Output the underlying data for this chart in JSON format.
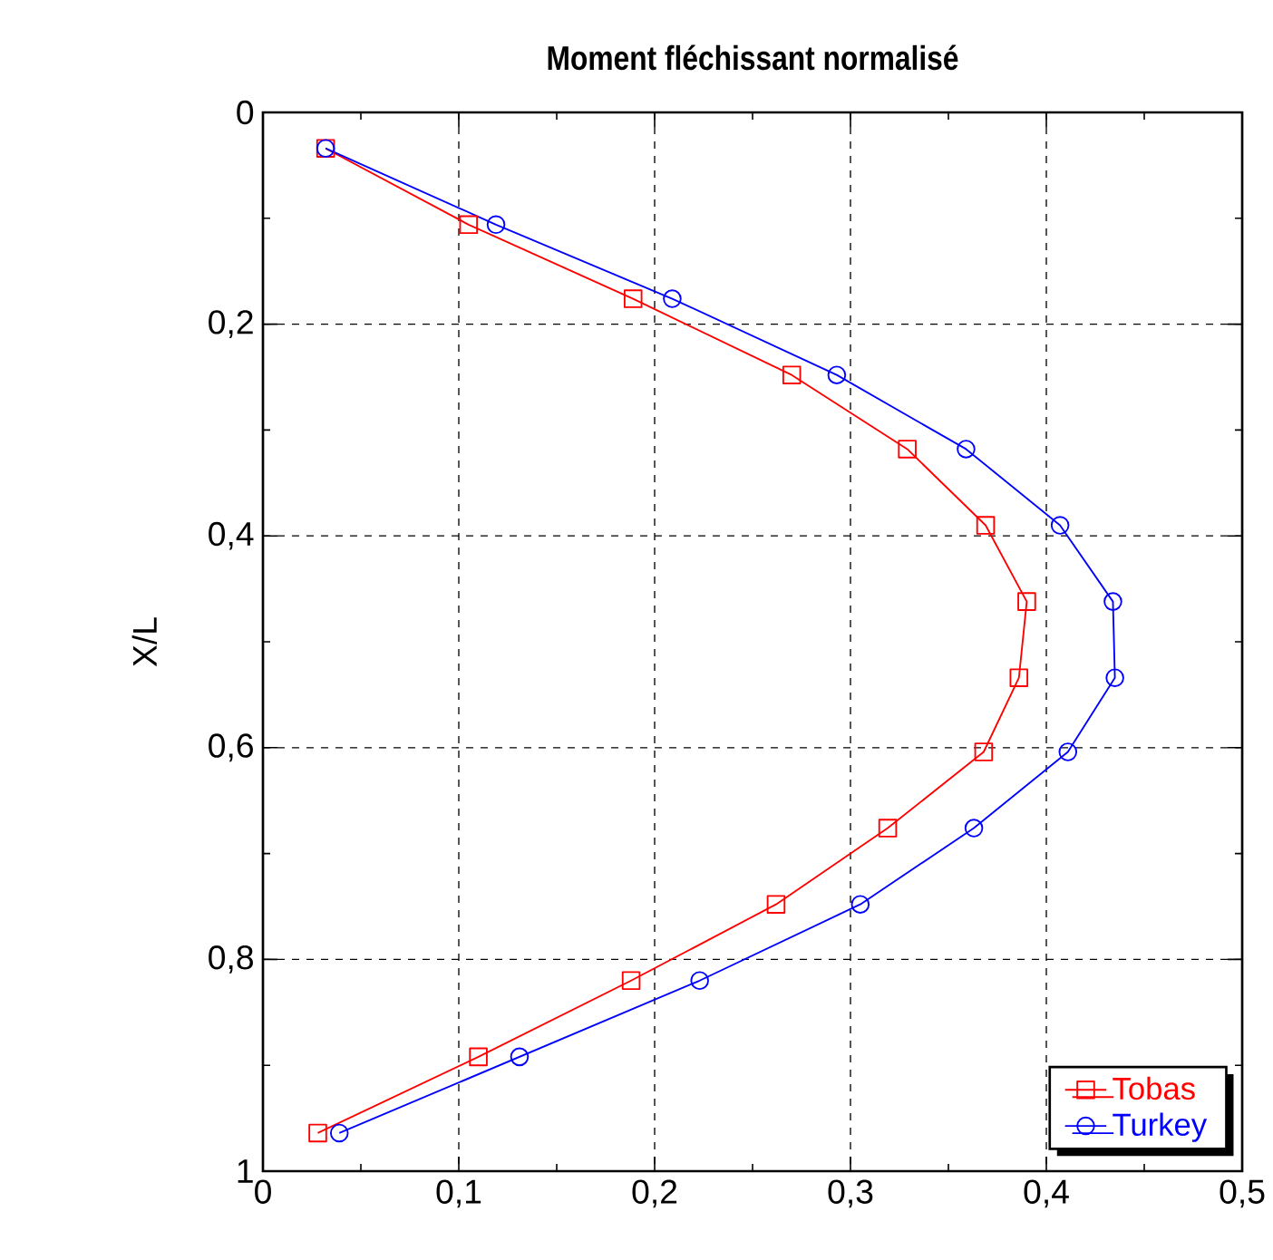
{
  "chart_data": {
    "type": "line",
    "title": "Moment fléchissant normalisé",
    "ylabel": "X/L",
    "xlim": [
      0,
      0.5
    ],
    "ylim": [
      1,
      0
    ],
    "xticks": [
      0,
      {
        "value": 0.1,
        "label": "0,1"
      },
      {
        "value": 0.2,
        "label": "0,2"
      },
      {
        "value": 0.3,
        "label": "0,3"
      },
      {
        "value": 0.4,
        "label": "0,4"
      },
      {
        "value": 0.5,
        "label": "0,5"
      }
    ],
    "yticks": [
      0,
      {
        "value": 0.2,
        "label": "0,2"
      },
      {
        "value": 0.4,
        "label": "0,4"
      },
      {
        "value": 0.6,
        "label": "0,6"
      },
      {
        "value": 0.8,
        "label": "0,8"
      },
      1
    ],
    "grid": true,
    "legend": "bottom right",
    "line_style": "solid",
    "series": [
      {
        "name": "Tobas",
        "color": "#ff0000",
        "marker": "square",
        "x": [
          0.032,
          0.105,
          0.189,
          0.27,
          0.329,
          0.369,
          0.39,
          0.386,
          0.368,
          0.319,
          0.262,
          0.188,
          0.11,
          0.028
        ],
        "values": [
          0.034,
          0.106,
          0.176,
          0.248,
          0.318,
          0.39,
          0.462,
          0.534,
          0.604,
          0.676,
          0.748,
          0.82,
          0.892,
          0.964
        ]
      },
      {
        "name": "Turkey",
        "color": "#0000ff",
        "marker": "circle",
        "x": [
          0.032,
          0.119,
          0.209,
          0.293,
          0.359,
          0.407,
          0.434,
          0.435,
          0.411,
          0.363,
          0.305,
          0.223,
          0.131,
          0.039
        ],
        "values": [
          0.034,
          0.106,
          0.176,
          0.248,
          0.318,
          0.39,
          0.462,
          0.534,
          0.604,
          0.676,
          0.748,
          0.82,
          0.892,
          0.964
        ]
      }
    ]
  }
}
